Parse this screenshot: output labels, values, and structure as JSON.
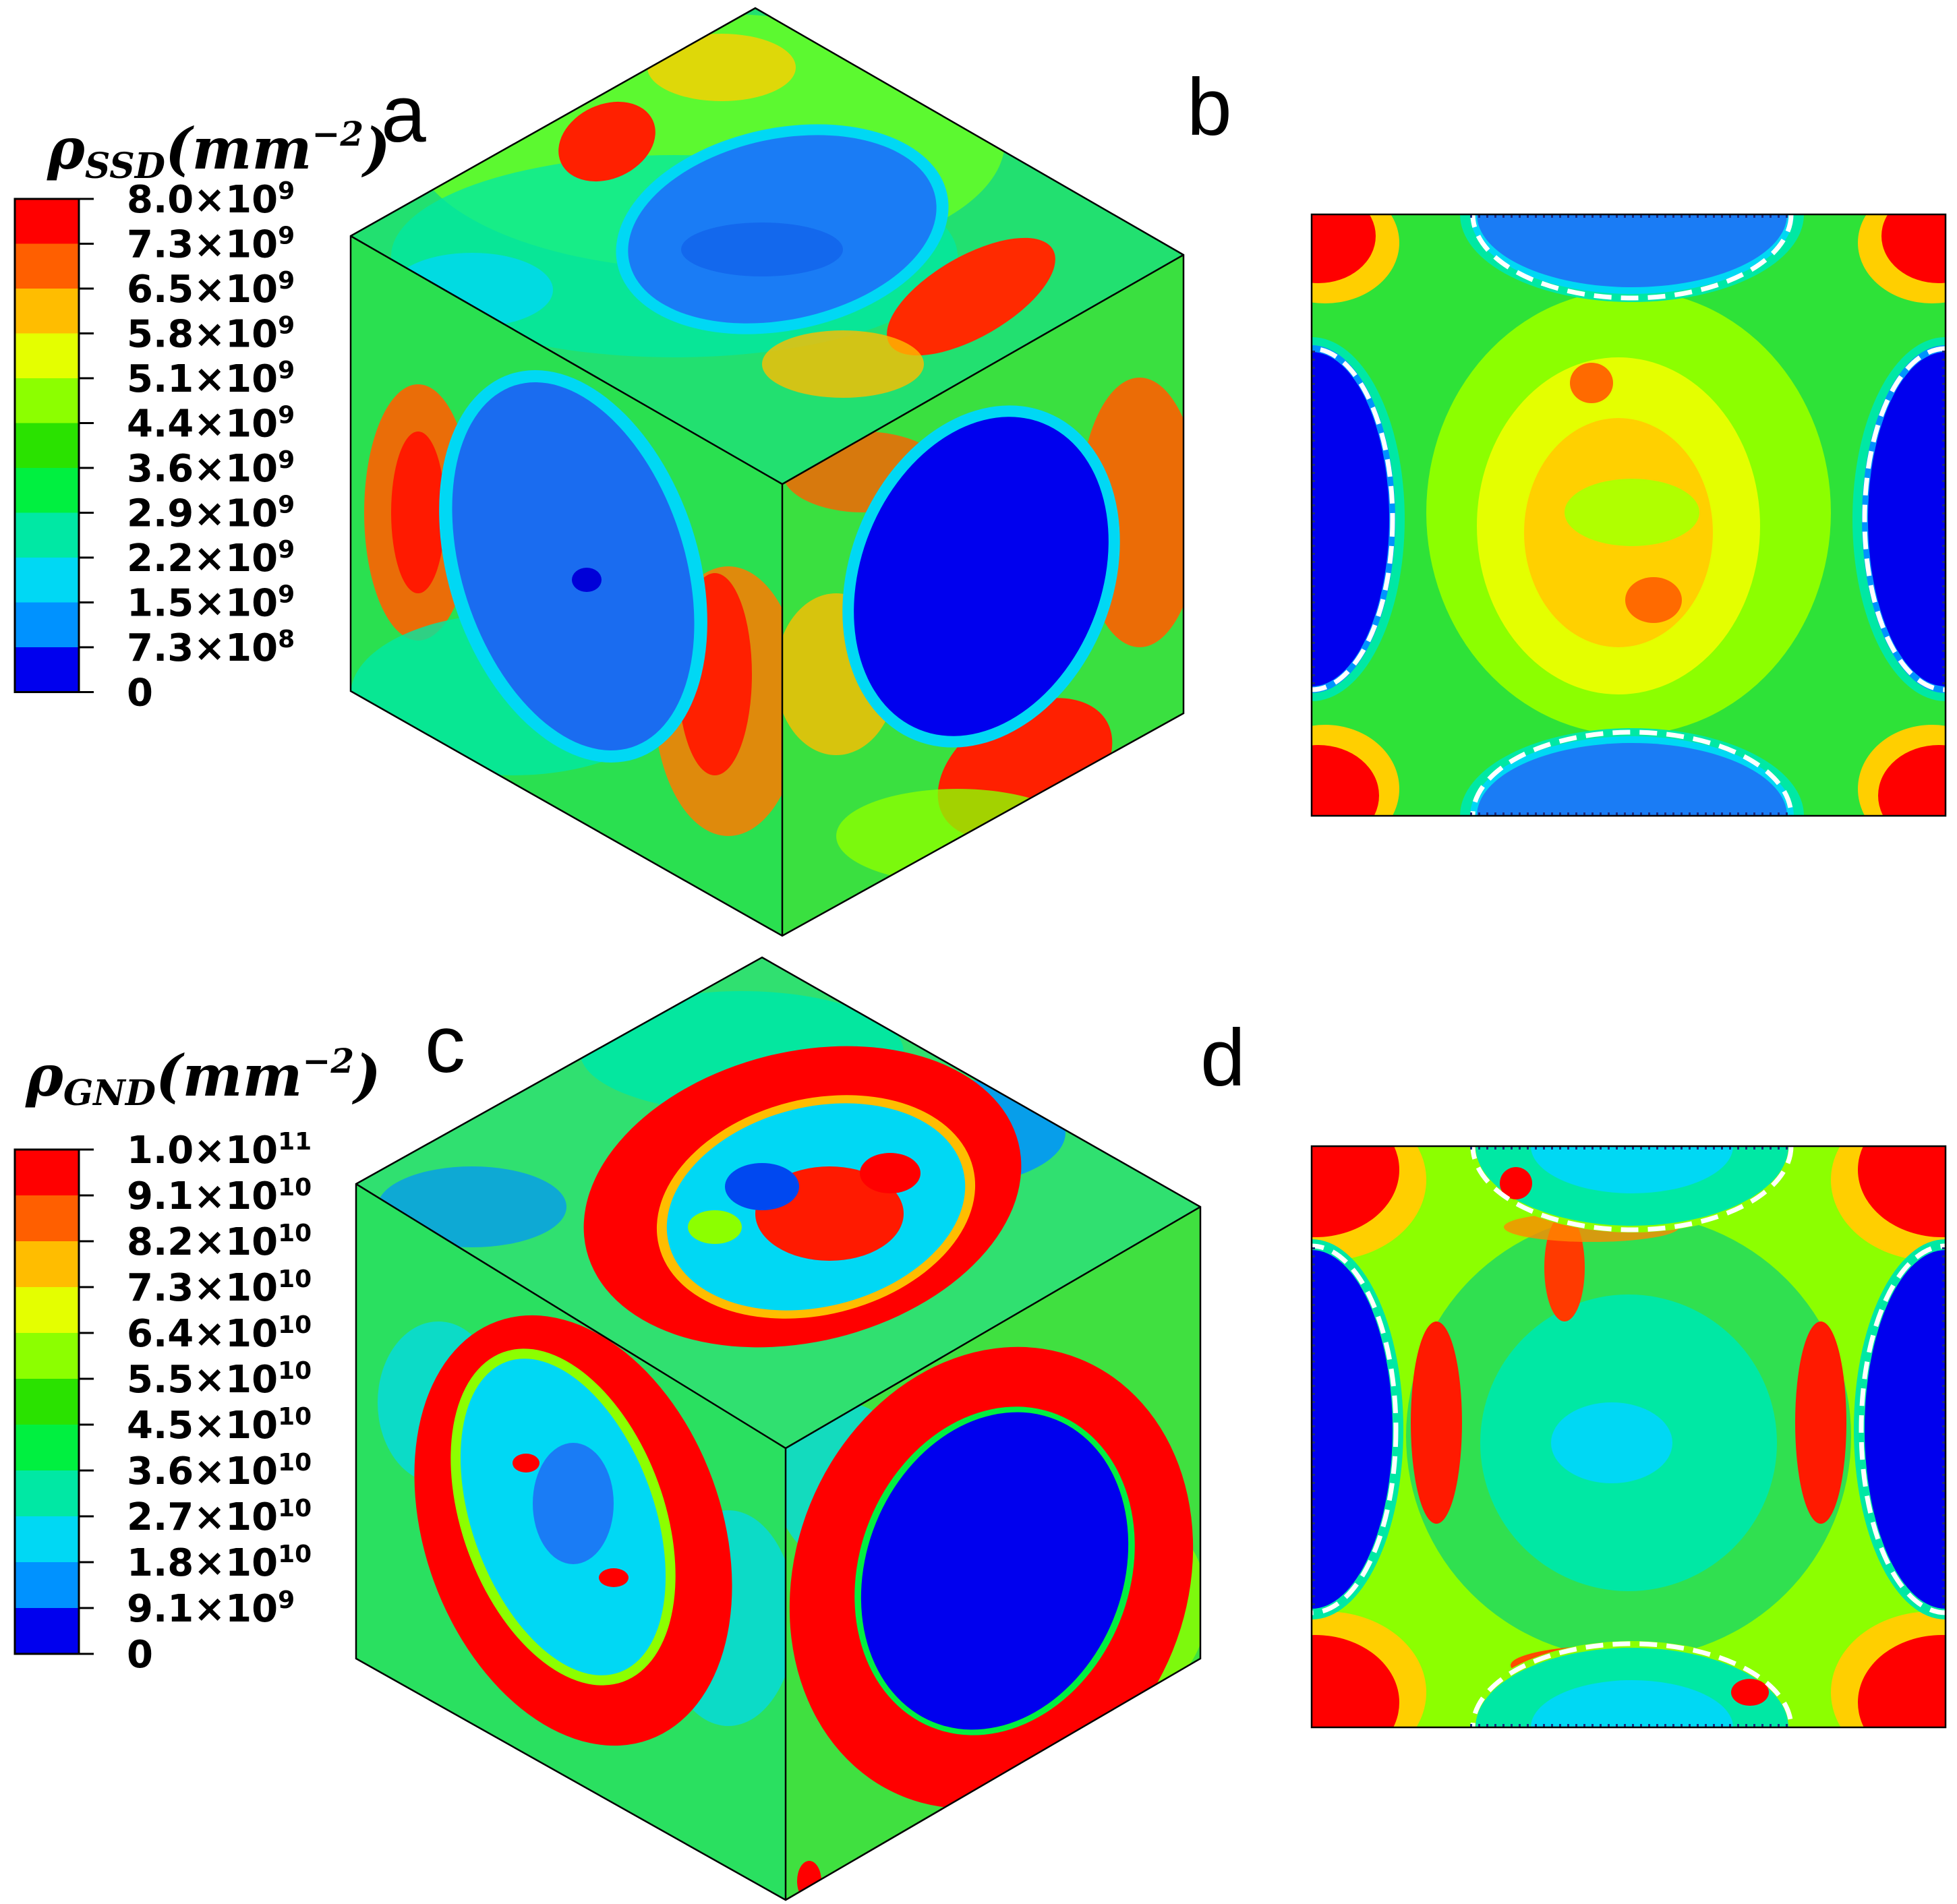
{
  "panels": [
    {
      "id": "a",
      "letter": "a"
    },
    {
      "id": "b",
      "letter": "b"
    },
    {
      "id": "c",
      "letter": "c"
    },
    {
      "id": "d",
      "letter": "d"
    }
  ],
  "legends": [
    {
      "id": "ssd",
      "title_symbol": "ρ",
      "title_subscript": "SSD",
      "title_unit": "(mm",
      "title_unit_exp": "−2",
      "title_close": ")",
      "entries": [
        {
          "mantissa": "8.0×10",
          "exp": "9",
          "color": "#ff0000"
        },
        {
          "mantissa": "7.3×10",
          "exp": "9",
          "color": "#ff5f00"
        },
        {
          "mantissa": "6.5×10",
          "exp": "9",
          "color": "#ffbd00"
        },
        {
          "mantissa": "5.8×10",
          "exp": "9",
          "color": "#e4ff00"
        },
        {
          "mantissa": "5.1×10",
          "exp": "9",
          "color": "#8cff00"
        },
        {
          "mantissa": "4.4×10",
          "exp": "9",
          "color": "#2ae200"
        },
        {
          "mantissa": "3.6×10",
          "exp": "9",
          "color": "#00f040"
        },
        {
          "mantissa": "2.9×10",
          "exp": "9",
          "color": "#00e8a4"
        },
        {
          "mantissa": "2.2×10",
          "exp": "9",
          "color": "#00d8f4"
        },
        {
          "mantissa": "1.5×10",
          "exp": "9",
          "color": "#0092ff"
        },
        {
          "mantissa": "7.3×10",
          "exp": "8",
          "color": "#0048f0"
        },
        {
          "mantissa": "0",
          "exp": "",
          "color": "#0000ee"
        }
      ]
    },
    {
      "id": "gnd",
      "title_symbol": "ρ",
      "title_subscript": "GND",
      "title_unit": "(mm",
      "title_unit_exp": "−2",
      "title_close": ")",
      "entries": [
        {
          "mantissa": "1.0×10",
          "exp": "11",
          "color": "#ff0000"
        },
        {
          "mantissa": "9.1×10",
          "exp": "10",
          "color": "#ff5f00"
        },
        {
          "mantissa": "8.2×10",
          "exp": "10",
          "color": "#ffbd00"
        },
        {
          "mantissa": "7.3×10",
          "exp": "10",
          "color": "#e4ff00"
        },
        {
          "mantissa": "6.4×10",
          "exp": "10",
          "color": "#8cff00"
        },
        {
          "mantissa": "5.5×10",
          "exp": "10",
          "color": "#2ae200"
        },
        {
          "mantissa": "4.5×10",
          "exp": "10",
          "color": "#00f040"
        },
        {
          "mantissa": "3.6×10",
          "exp": "10",
          "color": "#00e8a4"
        },
        {
          "mantissa": "2.7×10",
          "exp": "10",
          "color": "#00d8f4"
        },
        {
          "mantissa": "1.8×10",
          "exp": "10",
          "color": "#0092ff"
        },
        {
          "mantissa": "9.1×10",
          "exp": "9",
          "color": "#0048f0"
        },
        {
          "mantissa": "0",
          "exp": "",
          "color": "#0000ee"
        }
      ]
    }
  ]
}
